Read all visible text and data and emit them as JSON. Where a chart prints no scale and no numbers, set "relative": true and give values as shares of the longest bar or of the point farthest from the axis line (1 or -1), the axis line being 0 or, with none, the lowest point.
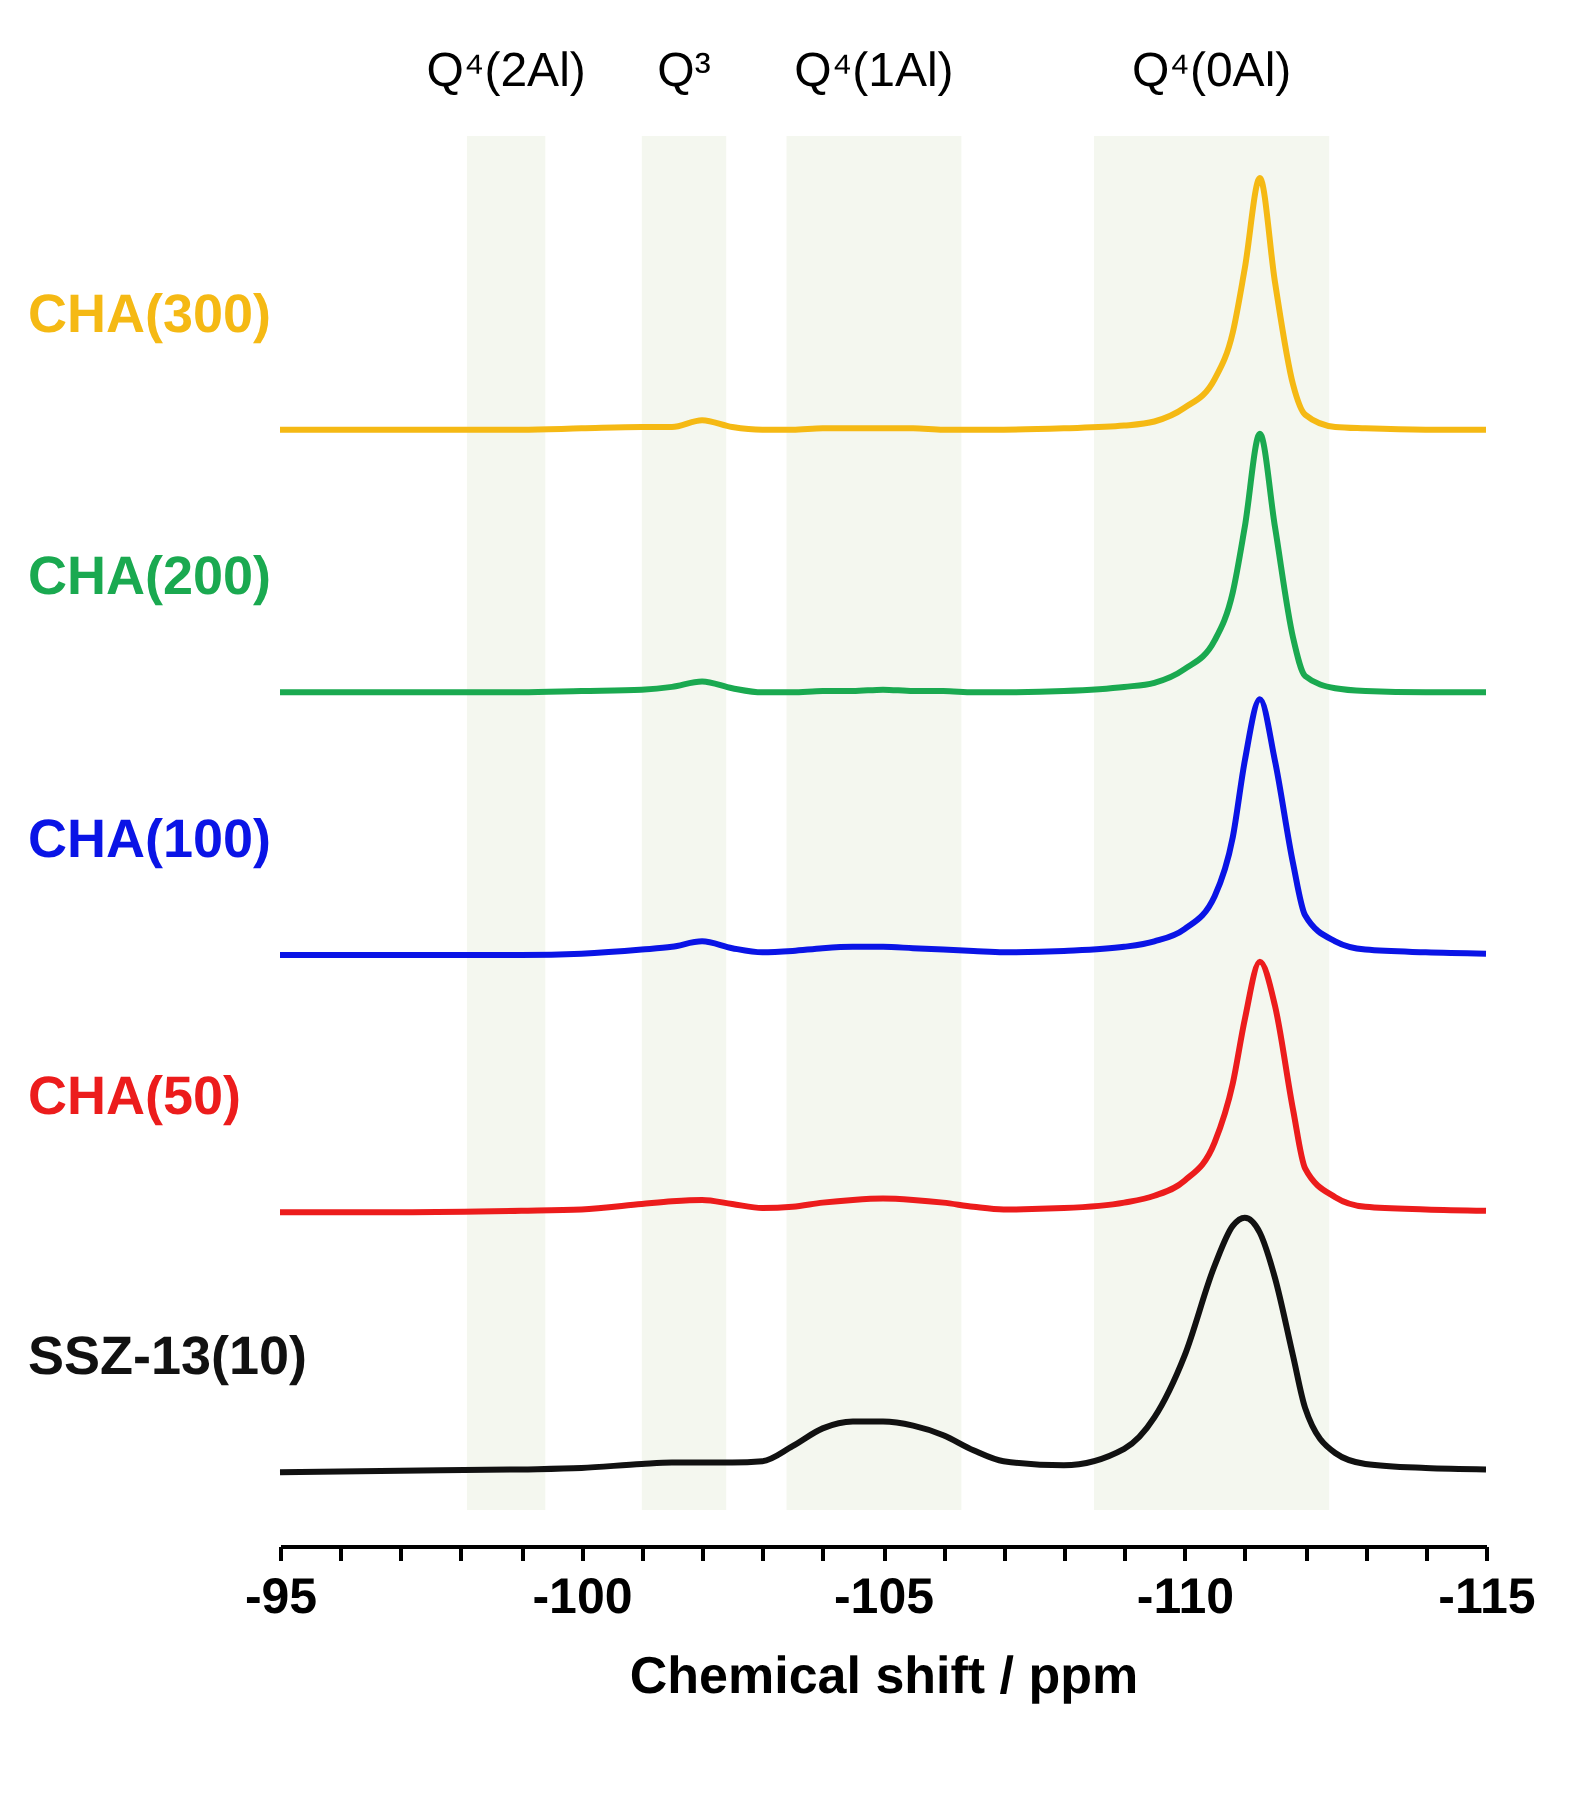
{
  "chart_data": {
    "type": "line",
    "xlabel": "Chemical shift / ppm",
    "relative": true,
    "legend": false,
    "grid": false,
    "xlim": [
      -95,
      -115
    ],
    "xticks": [
      -95,
      {
        "value": -96,
        "label": null
      },
      {
        "value": -97,
        "label": null
      },
      {
        "value": -98,
        "label": null
      },
      {
        "value": -99,
        "label": null
      },
      -100,
      {
        "value": -101,
        "label": null
      },
      {
        "value": -102,
        "label": null
      },
      {
        "value": -103,
        "label": null
      },
      {
        "value": -104,
        "label": null
      },
      -105,
      {
        "value": -106,
        "label": null
      },
      {
        "value": -107,
        "label": null
      },
      {
        "value": -108,
        "label": null
      },
      {
        "value": -109,
        "label": null
      },
      -110,
      {
        "value": -111,
        "label": null
      },
      {
        "value": -112,
        "label": null
      },
      {
        "value": -113,
        "label": null
      },
      {
        "value": -114,
        "label": null
      },
      -115
    ],
    "x": [
      -95,
      -97,
      -99,
      -100,
      -101,
      -101.5,
      -102,
      -102.5,
      -103,
      -103.5,
      -104,
      -104.5,
      -105,
      -105.5,
      -106,
      -106.5,
      -107,
      -108,
      -109,
      -109.5,
      -110,
      -110.5,
      -110.8,
      -111,
      -111.25,
      -111.5,
      -111.8,
      -112,
      -112.5,
      -113,
      -114,
      -115
    ],
    "series": [
      {
        "name": "CHA(300)",
        "color": "#f5b914",
        "values": [
          0.816,
          0.816,
          0.816,
          0.817,
          0.818,
          0.818,
          0.823,
          0.818,
          0.816,
          0.816,
          0.817,
          0.817,
          0.817,
          0.817,
          0.816,
          0.816,
          0.816,
          0.817,
          0.819,
          0.822,
          0.832,
          0.853,
          0.887,
          0.934,
          1.0,
          0.924,
          0.849,
          0.827,
          0.818,
          0.817,
          0.816,
          0.816
        ]
      },
      {
        "name": "CHA(200)",
        "color": "#1aa950",
        "values": [
          0.624,
          0.624,
          0.624,
          0.625,
          0.626,
          0.628,
          0.632,
          0.627,
          0.624,
          0.624,
          0.625,
          0.625,
          0.626,
          0.625,
          0.625,
          0.624,
          0.624,
          0.625,
          0.628,
          0.631,
          0.641,
          0.662,
          0.697,
          0.745,
          0.813,
          0.745,
          0.664,
          0.636,
          0.627,
          0.625,
          0.624,
          0.624
        ]
      },
      {
        "name": "CHA(100)",
        "color": "#0a14e6",
        "values": [
          0.432,
          0.432,
          0.432,
          0.433,
          0.436,
          0.438,
          0.442,
          0.437,
          0.434,
          0.435,
          0.437,
          0.438,
          0.438,
          0.437,
          0.436,
          0.435,
          0.434,
          0.435,
          0.438,
          0.442,
          0.451,
          0.475,
          0.518,
          0.574,
          0.619,
          0.574,
          0.499,
          0.461,
          0.442,
          0.436,
          0.434,
          0.433
        ]
      },
      {
        "name": "CHA(50)",
        "color": "#ec1c1c",
        "values": [
          0.244,
          0.244,
          0.245,
          0.246,
          0.25,
          0.252,
          0.253,
          0.25,
          0.247,
          0.248,
          0.251,
          0.253,
          0.254,
          0.253,
          0.251,
          0.248,
          0.246,
          0.247,
          0.251,
          0.256,
          0.267,
          0.295,
          0.338,
          0.385,
          0.427,
          0.395,
          0.319,
          0.276,
          0.255,
          0.248,
          0.246,
          0.245
        ]
      },
      {
        "name": "SSZ-13(10)",
        "color": "#111111",
        "values": [
          0.054,
          0.055,
          0.056,
          0.057,
          0.06,
          0.061,
          0.061,
          0.061,
          0.062,
          0.073,
          0.086,
          0.091,
          0.091,
          0.088,
          0.081,
          0.07,
          0.062,
          0.059,
          0.071,
          0.094,
          0.139,
          0.205,
          0.234,
          0.24,
          0.229,
          0.196,
          0.139,
          0.101,
          0.068,
          0.06,
          0.057,
          0.056
        ]
      }
    ],
    "bands": [
      {
        "axis": "x",
        "from": -98.1,
        "to": -99.4,
        "label": "Q⁴(2Al)",
        "color": "#f4f7ef"
      },
      {
        "axis": "x",
        "from": -101.0,
        "to": -102.4,
        "label": "Q³",
        "color": "#f4f7ef"
      },
      {
        "axis": "x",
        "from": -103.4,
        "to": -106.3,
        "label": "Q⁴(1Al)",
        "color": "#f4f7ef"
      },
      {
        "axis": "x",
        "from": -108.5,
        "to": -112.4,
        "label": "Q⁴(0Al)",
        "color": "#f4f7ef"
      }
    ]
  }
}
